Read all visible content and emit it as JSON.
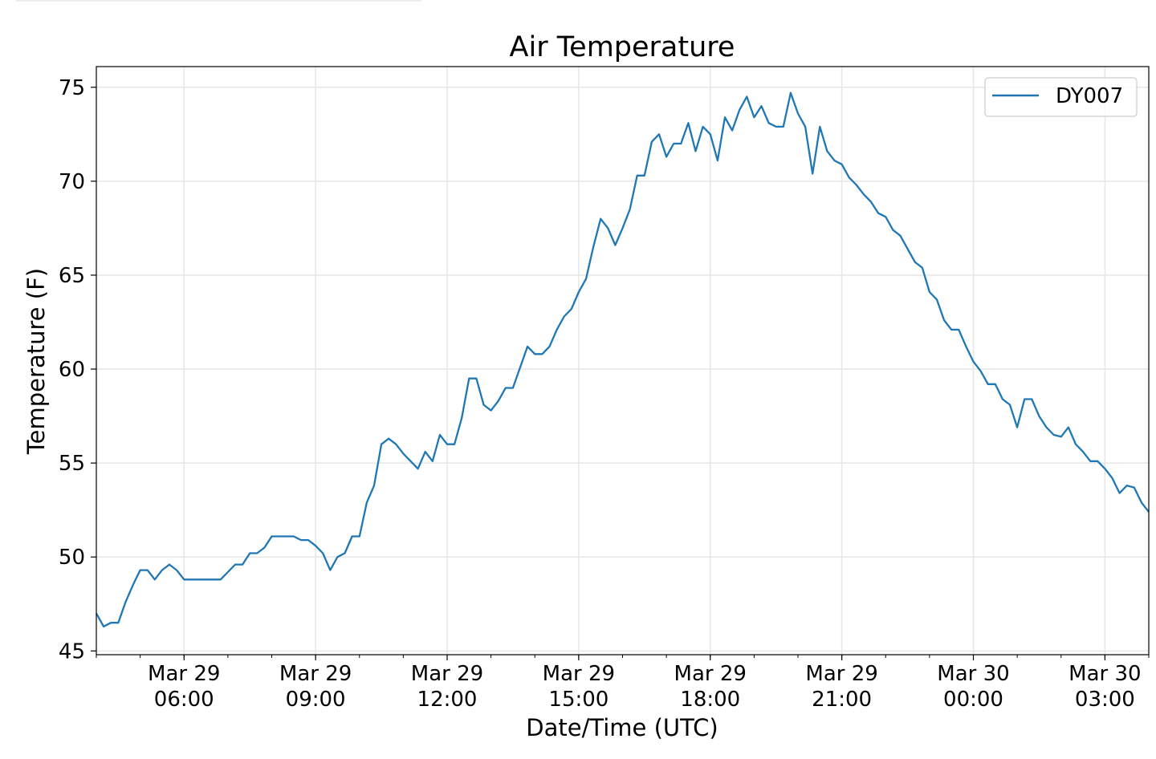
{
  "chart_data": {
    "type": "line",
    "title": "Air Temperature",
    "xlabel": "Date/Time (UTC)",
    "ylabel": "Temperature (F)",
    "ylim": [
      44.8,
      76.1
    ],
    "xlim_hours_from_mar29_0000": [
      4,
      28
    ],
    "start_hour": 4,
    "step_minutes": 10,
    "grid": true,
    "legend_position": "top-right",
    "yticks": [
      45,
      50,
      55,
      60,
      65,
      70,
      75
    ],
    "ytick_labels": [
      "45",
      "50",
      "55",
      "60",
      "65",
      "70",
      "75"
    ],
    "xticks_hours": [
      6,
      9,
      12,
      15,
      18,
      21,
      24,
      27
    ],
    "xtick_labels": [
      [
        "Mar 29",
        "06:00"
      ],
      [
        "Mar 29",
        "09:00"
      ],
      [
        "Mar 29",
        "12:00"
      ],
      [
        "Mar 29",
        "15:00"
      ],
      [
        "Mar 29",
        "18:00"
      ],
      [
        "Mar 29",
        "21:00"
      ],
      [
        "Mar 30",
        "00:00"
      ],
      [
        "Mar 30",
        "03:00"
      ]
    ],
    "series": [
      {
        "name": "DY007",
        "color": "#1f77b4",
        "values": [
          47.0,
          46.3,
          46.5,
          46.5,
          47.6,
          48.5,
          49.3,
          49.3,
          48.8,
          49.3,
          49.6,
          49.3,
          48.8,
          48.8,
          48.8,
          48.8,
          48.8,
          48.8,
          49.2,
          49.6,
          49.6,
          50.2,
          50.2,
          50.5,
          51.1,
          51.1,
          51.1,
          51.1,
          50.9,
          50.9,
          50.6,
          50.2,
          49.3,
          50.0,
          50.2,
          51.1,
          51.1,
          52.9,
          53.8,
          56.0,
          56.3,
          56.0,
          55.5,
          55.1,
          54.7,
          55.6,
          55.1,
          56.5,
          56.0,
          56.0,
          57.4,
          59.5,
          59.5,
          58.1,
          57.8,
          58.3,
          59.0,
          59.0,
          60.1,
          61.2,
          60.8,
          60.8,
          61.2,
          62.1,
          62.8,
          63.2,
          64.1,
          64.8,
          66.5,
          68.0,
          67.5,
          66.6,
          67.5,
          68.5,
          70.3,
          70.3,
          72.1,
          72.5,
          71.3,
          72.0,
          72.0,
          73.1,
          71.6,
          72.9,
          72.5,
          71.1,
          73.4,
          72.7,
          73.8,
          74.5,
          73.4,
          74.0,
          73.1,
          72.9,
          72.9,
          74.7,
          73.6,
          72.9,
          70.4,
          72.9,
          71.6,
          71.1,
          70.9,
          70.2,
          69.8,
          69.3,
          68.9,
          68.3,
          68.1,
          67.4,
          67.1,
          66.4,
          65.7,
          65.4,
          64.1,
          63.7,
          62.6,
          62.1,
          62.1,
          61.2,
          60.4,
          59.9,
          59.2,
          59.2,
          58.4,
          58.1,
          56.9,
          58.4,
          58.4,
          57.5,
          56.9,
          56.5,
          56.4,
          56.9,
          56.0,
          55.6,
          55.1,
          55.1,
          54.7,
          54.2,
          53.4,
          53.8,
          53.7,
          52.9,
          52.4
        ]
      }
    ]
  }
}
